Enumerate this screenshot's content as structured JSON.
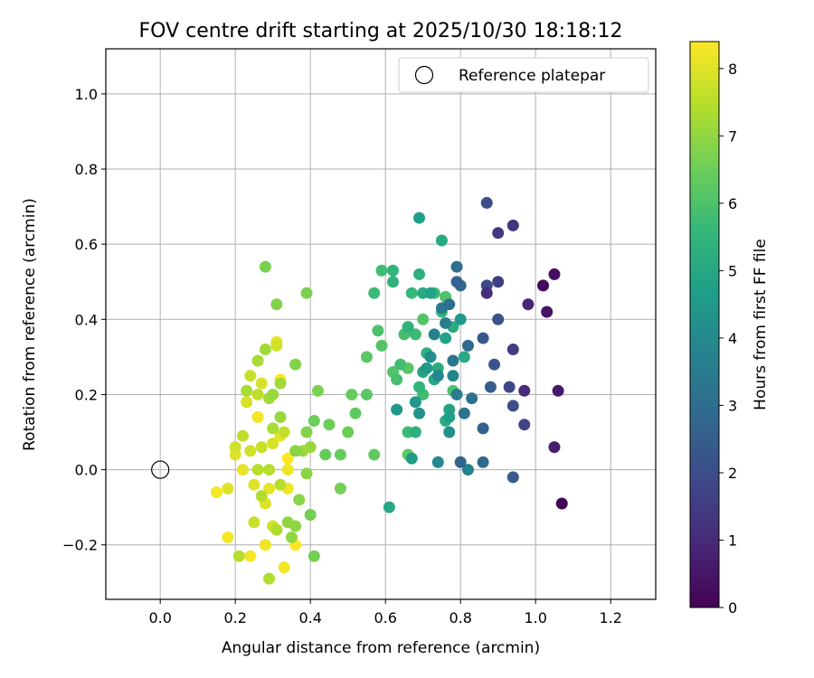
{
  "chart_data": {
    "type": "scatter",
    "title": "FOV centre drift starting at 2025/10/30 18:18:12",
    "xlabel": "Angular distance from reference (arcmin)",
    "ylabel": "Rotation from reference (arcmin)",
    "xlim": [
      -0.145,
      1.32
    ],
    "ylim": [
      -0.345,
      1.12
    ],
    "x_ticks": [
      0.0,
      0.2,
      0.4,
      0.6,
      0.8,
      1.0,
      1.2
    ],
    "x_tick_labels": [
      "0.0",
      "0.2",
      "0.4",
      "0.6",
      "0.8",
      "1.0",
      "1.2"
    ],
    "y_ticks": [
      -0.2,
      0.0,
      0.2,
      0.4,
      0.6,
      0.8,
      1.0
    ],
    "y_tick_labels": [
      "−0.2",
      "0.0",
      "0.2",
      "0.4",
      "0.6",
      "0.8",
      "1.0"
    ],
    "grid": true,
    "legend": {
      "position": "top-right",
      "entries": [
        {
          "label": "Reference platepar",
          "marker": "open-circle"
        }
      ]
    },
    "reference_point": {
      "x": 0.0,
      "y": 0.0
    },
    "colorbar": {
      "label": "Hours from first FF file",
      "range": [
        0,
        8.4
      ],
      "ticks": [
        0,
        1,
        2,
        3,
        4,
        5,
        6,
        7,
        8
      ],
      "tick_labels": [
        "0",
        "1",
        "2",
        "3",
        "4",
        "5",
        "6",
        "7",
        "8"
      ],
      "colormap": "viridis",
      "colormap_stops": [
        "#440154",
        "#482878",
        "#3e4989",
        "#31688e",
        "#26828e",
        "#1f9e89",
        "#35b779",
        "#6ece58",
        "#b5de2b",
        "#fde725"
      ]
    },
    "points": [
      {
        "x": 1.07,
        "y": -0.09,
        "t": 0.1
      },
      {
        "x": 1.02,
        "y": 0.49,
        "t": 0.2
      },
      {
        "x": 1.05,
        "y": 0.52,
        "t": 0.3
      },
      {
        "x": 1.03,
        "y": 0.42,
        "t": 0.4
      },
      {
        "x": 1.06,
        "y": 0.21,
        "t": 0.6
      },
      {
        "x": 1.05,
        "y": 0.06,
        "t": 0.7
      },
      {
        "x": 0.98,
        "y": 0.44,
        "t": 0.9
      },
      {
        "x": 0.97,
        "y": 0.21,
        "t": 1.0
      },
      {
        "x": 0.87,
        "y": 0.47,
        "t": 1.1
      },
      {
        "x": 0.94,
        "y": 0.65,
        "t": 1.3
      },
      {
        "x": 0.9,
        "y": 0.63,
        "t": 1.4
      },
      {
        "x": 0.94,
        "y": 0.32,
        "t": 1.5
      },
      {
        "x": 0.9,
        "y": 0.5,
        "t": 1.6
      },
      {
        "x": 0.97,
        "y": 0.12,
        "t": 1.7
      },
      {
        "x": 0.93,
        "y": 0.22,
        "t": 1.8
      },
      {
        "x": 0.87,
        "y": 0.71,
        "t": 2.0
      },
      {
        "x": 0.87,
        "y": 0.49,
        "t": 1.9
      },
      {
        "x": 0.9,
        "y": 0.4,
        "t": 2.1
      },
      {
        "x": 0.89,
        "y": 0.28,
        "t": 2.2
      },
      {
        "x": 0.94,
        "y": 0.17,
        "t": 2.0
      },
      {
        "x": 0.86,
        "y": 0.35,
        "t": 2.3
      },
      {
        "x": 0.88,
        "y": 0.22,
        "t": 2.5
      },
      {
        "x": 0.86,
        "y": 0.11,
        "t": 2.6
      },
      {
        "x": 0.94,
        "y": -0.02,
        "t": 2.4
      },
      {
        "x": 0.86,
        "y": 0.02,
        "t": 2.8
      },
      {
        "x": 0.8,
        "y": 0.02,
        "t": 2.7
      },
      {
        "x": 0.82,
        "y": 0.33,
        "t": 2.9
      },
      {
        "x": 0.79,
        "y": 0.5,
        "t": 2.6
      },
      {
        "x": 0.79,
        "y": 0.54,
        "t": 3.0
      },
      {
        "x": 0.8,
        "y": 0.49,
        "t": 2.8
      },
      {
        "x": 0.83,
        "y": 0.19,
        "t": 3.1
      },
      {
        "x": 0.81,
        "y": 0.15,
        "t": 3.2
      },
      {
        "x": 0.78,
        "y": 0.29,
        "t": 3.3
      },
      {
        "x": 0.77,
        "y": 0.44,
        "t": 3.0
      },
      {
        "x": 0.75,
        "y": 0.43,
        "t": 3.4
      },
      {
        "x": 0.79,
        "y": 0.2,
        "t": 3.5
      },
      {
        "x": 0.76,
        "y": 0.39,
        "t": 3.6
      },
      {
        "x": 0.73,
        "y": 0.36,
        "t": 3.7
      },
      {
        "x": 0.82,
        "y": 0.0,
        "t": 3.8
      },
      {
        "x": 0.78,
        "y": 0.25,
        "t": 3.9
      },
      {
        "x": 0.74,
        "y": 0.25,
        "t": 3.9
      },
      {
        "x": 0.74,
        "y": 0.02,
        "t": 4.0
      },
      {
        "x": 0.72,
        "y": 0.3,
        "t": 4.1
      },
      {
        "x": 0.77,
        "y": 0.1,
        "t": 4.2
      },
      {
        "x": 0.69,
        "y": 0.15,
        "t": 4.3
      },
      {
        "x": 0.63,
        "y": 0.16,
        "t": 4.4
      },
      {
        "x": 0.68,
        "y": 0.18,
        "t": 4.4
      },
      {
        "x": 0.8,
        "y": 0.4,
        "t": 4.5
      },
      {
        "x": 0.71,
        "y": 0.27,
        "t": 4.5
      },
      {
        "x": 0.67,
        "y": 0.03,
        "t": 4.6
      },
      {
        "x": 0.69,
        "y": 0.67,
        "t": 4.7
      },
      {
        "x": 0.77,
        "y": 0.14,
        "t": 4.7
      },
      {
        "x": 0.72,
        "y": 0.47,
        "t": 4.8
      },
      {
        "x": 0.76,
        "y": 0.35,
        "t": 4.8
      },
      {
        "x": 0.7,
        "y": 0.26,
        "t": 4.9
      },
      {
        "x": 0.77,
        "y": 0.16,
        "t": 4.9
      },
      {
        "x": 0.73,
        "y": 0.24,
        "t": 5.0
      },
      {
        "x": 0.81,
        "y": 0.3,
        "t": 5.0
      },
      {
        "x": 0.61,
        "y": -0.1,
        "t": 5.0
      },
      {
        "x": 0.75,
        "y": 0.61,
        "t": 5.1
      },
      {
        "x": 0.7,
        "y": 0.47,
        "t": 5.1
      },
      {
        "x": 0.78,
        "y": 0.38,
        "t": 5.1
      },
      {
        "x": 0.74,
        "y": 0.27,
        "t": 5.2
      },
      {
        "x": 0.76,
        "y": 0.13,
        "t": 5.2
      },
      {
        "x": 0.69,
        "y": 0.52,
        "t": 5.3
      },
      {
        "x": 0.71,
        "y": 0.31,
        "t": 5.3
      },
      {
        "x": 0.68,
        "y": 0.1,
        "t": 5.3
      },
      {
        "x": 0.62,
        "y": 0.5,
        "t": 5.4
      },
      {
        "x": 0.66,
        "y": 0.38,
        "t": 5.4
      },
      {
        "x": 0.69,
        "y": 0.22,
        "t": 5.5
      },
      {
        "x": 0.75,
        "y": 0.42,
        "t": 5.5
      },
      {
        "x": 0.62,
        "y": 0.53,
        "t": 5.5
      },
      {
        "x": 0.67,
        "y": 0.47,
        "t": 5.6
      },
      {
        "x": 0.73,
        "y": 0.47,
        "t": 5.6
      },
      {
        "x": 0.68,
        "y": 0.36,
        "t": 5.7
      },
      {
        "x": 0.66,
        "y": 0.1,
        "t": 5.7
      },
      {
        "x": 0.57,
        "y": 0.47,
        "t": 5.7
      },
      {
        "x": 0.59,
        "y": 0.53,
        "t": 5.8
      },
      {
        "x": 0.64,
        "y": 0.28,
        "t": 5.8
      },
      {
        "x": 0.7,
        "y": 0.2,
        "t": 5.8
      },
      {
        "x": 0.63,
        "y": 0.24,
        "t": 5.9
      },
      {
        "x": 0.65,
        "y": 0.36,
        "t": 5.9
      },
      {
        "x": 0.78,
        "y": 0.21,
        "t": 6.0
      },
      {
        "x": 0.76,
        "y": 0.46,
        "t": 6.0
      },
      {
        "x": 0.58,
        "y": 0.37,
        "t": 6.0
      },
      {
        "x": 0.59,
        "y": 0.33,
        "t": 6.1
      },
      {
        "x": 0.7,
        "y": 0.4,
        "t": 6.1
      },
      {
        "x": 0.62,
        "y": 0.26,
        "t": 6.1
      },
      {
        "x": 0.66,
        "y": 0.27,
        "t": 6.2
      },
      {
        "x": 0.55,
        "y": 0.3,
        "t": 6.2
      },
      {
        "x": 0.55,
        "y": 0.2,
        "t": 6.2
      },
      {
        "x": 0.57,
        "y": 0.04,
        "t": 6.3
      },
      {
        "x": 0.66,
        "y": 0.04,
        "t": 6.3
      },
      {
        "x": 0.52,
        "y": 0.15,
        "t": 6.3
      },
      {
        "x": 0.51,
        "y": 0.2,
        "t": 6.4
      },
      {
        "x": 0.44,
        "y": 0.04,
        "t": 6.4
      },
      {
        "x": 0.48,
        "y": 0.04,
        "t": 6.4
      },
      {
        "x": 0.5,
        "y": 0.1,
        "t": 6.5
      },
      {
        "x": 0.45,
        "y": 0.12,
        "t": 6.5
      },
      {
        "x": 0.41,
        "y": 0.13,
        "t": 6.5
      },
      {
        "x": 0.4,
        "y": -0.12,
        "t": 6.6
      },
      {
        "x": 0.41,
        "y": -0.23,
        "t": 6.6
      },
      {
        "x": 0.48,
        "y": -0.05,
        "t": 6.6
      },
      {
        "x": 0.42,
        "y": 0.21,
        "t": 6.7
      },
      {
        "x": 0.39,
        "y": 0.47,
        "t": 6.7
      },
      {
        "x": 0.28,
        "y": 0.54,
        "t": 6.7
      },
      {
        "x": 0.31,
        "y": 0.44,
        "t": 6.8
      },
      {
        "x": 0.36,
        "y": 0.28,
        "t": 6.8
      },
      {
        "x": 0.39,
        "y": 0.1,
        "t": 6.8
      },
      {
        "x": 0.36,
        "y": 0.05,
        "t": 6.9
      },
      {
        "x": 0.37,
        "y": -0.08,
        "t": 6.9
      },
      {
        "x": 0.39,
        "y": -0.01,
        "t": 6.9
      },
      {
        "x": 0.35,
        "y": -0.18,
        "t": 7.0
      },
      {
        "x": 0.34,
        "y": -0.14,
        "t": 7.0
      },
      {
        "x": 0.36,
        "y": -0.15,
        "t": 7.0
      },
      {
        "x": 0.4,
        "y": 0.06,
        "t": 7.1
      },
      {
        "x": 0.3,
        "y": 0.2,
        "t": 7.1
      },
      {
        "x": 0.32,
        "y": 0.14,
        "t": 7.1
      },
      {
        "x": 0.38,
        "y": 0.05,
        "t": 7.1
      },
      {
        "x": 0.28,
        "y": 0.32,
        "t": 7.2
      },
      {
        "x": 0.32,
        "y": 0.23,
        "t": 7.2
      },
      {
        "x": 0.29,
        "y": 0.19,
        "t": 7.2
      },
      {
        "x": 0.3,
        "y": 0.11,
        "t": 7.3
      },
      {
        "x": 0.26,
        "y": 0.29,
        "t": 7.3
      },
      {
        "x": 0.23,
        "y": 0.21,
        "t": 7.3
      },
      {
        "x": 0.27,
        "y": -0.07,
        "t": 7.4
      },
      {
        "x": 0.31,
        "y": -0.16,
        "t": 7.4
      },
      {
        "x": 0.29,
        "y": -0.29,
        "t": 7.4
      },
      {
        "x": 0.26,
        "y": 0.0,
        "t": 7.5
      },
      {
        "x": 0.29,
        "y": 0.0,
        "t": 7.5
      },
      {
        "x": 0.32,
        "y": -0.04,
        "t": 7.5
      },
      {
        "x": 0.21,
        "y": -0.23,
        "t": 7.5
      },
      {
        "x": 0.22,
        "y": 0.09,
        "t": 7.6
      },
      {
        "x": 0.26,
        "y": 0.2,
        "t": 7.6
      },
      {
        "x": 0.33,
        "y": 0.1,
        "t": 7.6
      },
      {
        "x": 0.24,
        "y": 0.25,
        "t": 7.7
      },
      {
        "x": 0.27,
        "y": 0.06,
        "t": 7.7
      },
      {
        "x": 0.25,
        "y": -0.14,
        "t": 7.7
      },
      {
        "x": 0.3,
        "y": -0.15,
        "t": 7.8
      },
      {
        "x": 0.2,
        "y": 0.06,
        "t": 7.8
      },
      {
        "x": 0.24,
        "y": 0.05,
        "t": 7.8
      },
      {
        "x": 0.31,
        "y": 0.33,
        "t": 7.8
      },
      {
        "x": 0.23,
        "y": 0.18,
        "t": 7.9
      },
      {
        "x": 0.3,
        "y": 0.07,
        "t": 7.9
      },
      {
        "x": 0.27,
        "y": 0.23,
        "t": 7.9
      },
      {
        "x": 0.2,
        "y": 0.04,
        "t": 8.0
      },
      {
        "x": 0.25,
        "y": -0.04,
        "t": 8.0
      },
      {
        "x": 0.18,
        "y": -0.05,
        "t": 8.0
      },
      {
        "x": 0.28,
        "y": -0.09,
        "t": 8.0
      },
      {
        "x": 0.32,
        "y": 0.09,
        "t": 8.1
      },
      {
        "x": 0.22,
        "y": 0.0,
        "t": 8.1
      },
      {
        "x": 0.31,
        "y": 0.34,
        "t": 8.1
      },
      {
        "x": 0.29,
        "y": -0.05,
        "t": 8.1
      },
      {
        "x": 0.34,
        "y": 0.0,
        "t": 8.2
      },
      {
        "x": 0.34,
        "y": -0.05,
        "t": 8.2
      },
      {
        "x": 0.3,
        "y": -0.15,
        "t": 8.2
      },
      {
        "x": 0.28,
        "y": -0.2,
        "t": 8.2
      },
      {
        "x": 0.24,
        "y": -0.23,
        "t": 8.3
      },
      {
        "x": 0.33,
        "y": -0.26,
        "t": 8.3
      },
      {
        "x": 0.18,
        "y": -0.18,
        "t": 8.3
      },
      {
        "x": 0.15,
        "y": -0.06,
        "t": 8.3
      },
      {
        "x": 0.26,
        "y": 0.14,
        "t": 8.3
      },
      {
        "x": 0.32,
        "y": 0.24,
        "t": 8.4
      },
      {
        "x": 0.36,
        "y": -0.2,
        "t": 8.4
      },
      {
        "x": 0.34,
        "y": 0.03,
        "t": 8.4
      }
    ]
  }
}
